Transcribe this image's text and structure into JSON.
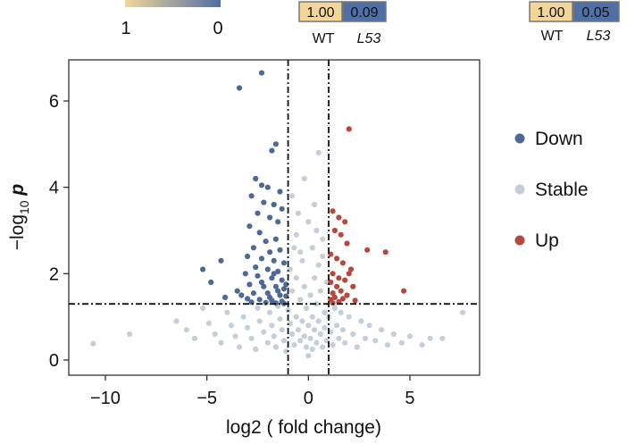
{
  "colors": {
    "down": "#4d6a96",
    "stable": "#c6ced9",
    "up": "#b5493f",
    "scale_high": "#f3d697",
    "scale_low": "#4f6fa7"
  },
  "scale_bar": {
    "left_label": "1",
    "right_label": "0"
  },
  "expression_boxes": [
    {
      "values": [
        "1.00",
        "0.09"
      ],
      "labels": [
        "WT",
        "L53"
      ]
    },
    {
      "values": [
        "1.00",
        "0.05"
      ],
      "labels": [
        "WT",
        "L53"
      ]
    }
  ],
  "chart_data": {
    "type": "scatter",
    "xlabel": "log2 ( fold change)",
    "ylabel": "-log10 p",
    "xlim": [
      -11.5,
      8
    ],
    "ylim": [
      -0.1,
      7
    ],
    "x_ticks": [
      "-10",
      "-5",
      "0",
      "5"
    ],
    "y_ticks": [
      "0",
      "2",
      "4",
      "6"
    ],
    "thresholds": {
      "fold_change": [
        -1,
        1
      ],
      "p": 1.3
    },
    "legend": {
      "placement": "right",
      "entries": [
        "Down",
        "Stable",
        "Up"
      ]
    },
    "series": [
      {
        "name": "Down",
        "points": [
          [
            -2.3,
            6.65
          ],
          [
            -3.4,
            6.3
          ],
          [
            -1.6,
            5.0
          ],
          [
            -1.8,
            4.85
          ],
          [
            -2.6,
            4.2
          ],
          [
            -2.3,
            4.05
          ],
          [
            -2.0,
            4.0
          ],
          [
            -1.4,
            3.9
          ],
          [
            -2.8,
            3.8
          ],
          [
            -2.2,
            3.65
          ],
          [
            -1.7,
            3.6
          ],
          [
            -1.3,
            3.5
          ],
          [
            -2.5,
            3.4
          ],
          [
            -1.9,
            3.3
          ],
          [
            -1.5,
            3.2
          ],
          [
            -2.9,
            3.1
          ],
          [
            -2.4,
            2.95
          ],
          [
            -1.6,
            2.8
          ],
          [
            -2.1,
            2.75
          ],
          [
            -2.7,
            2.6
          ],
          [
            -1.4,
            2.55
          ],
          [
            -1.9,
            2.5
          ],
          [
            -3.0,
            2.4
          ],
          [
            -2.3,
            2.35
          ],
          [
            -1.7,
            2.3
          ],
          [
            -1.2,
            2.25
          ],
          [
            -2.6,
            2.15
          ],
          [
            -2.0,
            2.1
          ],
          [
            -1.5,
            2.05
          ],
          [
            -4.3,
            2.3
          ],
          [
            -5.2,
            2.1
          ],
          [
            -3.1,
            2.0
          ],
          [
            -2.5,
            1.95
          ],
          [
            -1.8,
            1.9
          ],
          [
            -1.3,
            1.85
          ],
          [
            -4.8,
            1.8
          ],
          [
            -2.9,
            1.75
          ],
          [
            -2.2,
            1.7
          ],
          [
            -1.6,
            1.7
          ],
          [
            -1.2,
            1.65
          ],
          [
            -3.5,
            1.6
          ],
          [
            -2.7,
            1.55
          ],
          [
            -2.0,
            1.55
          ],
          [
            -1.4,
            1.5
          ],
          [
            -1.1,
            1.48
          ],
          [
            -4.1,
            1.45
          ],
          [
            -3.0,
            1.42
          ],
          [
            -2.4,
            1.4
          ],
          [
            -1.8,
            1.38
          ],
          [
            -1.3,
            1.36
          ],
          [
            -2.8,
            1.34
          ],
          [
            -2.1,
            1.33
          ],
          [
            -1.6,
            1.32
          ],
          [
            -1.2,
            1.31
          ],
          [
            -3.3,
            1.5
          ],
          [
            -1.9,
            1.45
          ],
          [
            -1.5,
            1.6
          ],
          [
            -2.3,
            1.8
          ],
          [
            -1.1,
            1.75
          ],
          [
            -1.7,
            2.0
          ]
        ]
      },
      {
        "name": "Stable",
        "points": [
          [
            -10.6,
            0.38
          ],
          [
            -8.8,
            0.6
          ],
          [
            -6.5,
            0.9
          ],
          [
            -6.0,
            0.7
          ],
          [
            -5.6,
            0.5
          ],
          [
            -5.2,
            1.2
          ],
          [
            -4.9,
            0.85
          ],
          [
            -4.6,
            0.6
          ],
          [
            -4.3,
            0.4
          ],
          [
            -4.0,
            1.1
          ],
          [
            -3.8,
            0.8
          ],
          [
            -3.6,
            0.55
          ],
          [
            -3.4,
            0.3
          ],
          [
            -3.2,
            1.0
          ],
          [
            -3.0,
            0.75
          ],
          [
            -2.8,
            0.5
          ],
          [
            -2.6,
            0.25
          ],
          [
            -2.5,
            1.2
          ],
          [
            -2.4,
            0.9
          ],
          [
            -2.2,
            0.65
          ],
          [
            -2.0,
            0.4
          ],
          [
            -1.9,
            1.1
          ],
          [
            -1.8,
            0.8
          ],
          [
            -1.7,
            0.55
          ],
          [
            -1.6,
            0.3
          ],
          [
            -1.5,
            1.25
          ],
          [
            -1.4,
            0.95
          ],
          [
            -1.3,
            0.7
          ],
          [
            -1.2,
            0.45
          ],
          [
            -1.1,
            0.2
          ],
          [
            -1.0,
            1.15
          ],
          [
            -0.9,
            0.85
          ],
          [
            -0.9,
            2.1
          ],
          [
            -0.8,
            0.6
          ],
          [
            -0.8,
            1.6
          ],
          [
            -0.7,
            0.35
          ],
          [
            -0.7,
            2.6
          ],
          [
            -0.6,
            1.0
          ],
          [
            -0.6,
            1.9
          ],
          [
            -0.5,
            0.7
          ],
          [
            -0.5,
            3.4
          ],
          [
            -0.4,
            0.45
          ],
          [
            -0.4,
            1.4
          ],
          [
            -0.3,
            0.9
          ],
          [
            -0.3,
            2.3
          ],
          [
            -0.2,
            0.55
          ],
          [
            -0.2,
            1.7
          ],
          [
            -0.1,
            0.3
          ],
          [
            -0.1,
            1.2
          ],
          [
            0.0,
            0.8
          ],
          [
            0.0,
            0.1
          ],
          [
            0.1,
            0.5
          ],
          [
            0.1,
            1.5
          ],
          [
            0.2,
            0.25
          ],
          [
            0.2,
            1.0
          ],
          [
            0.3,
            0.7
          ],
          [
            0.3,
            1.9
          ],
          [
            0.4,
            0.4
          ],
          [
            0.4,
            1.3
          ],
          [
            0.5,
            0.9
          ],
          [
            0.5,
            2.2
          ],
          [
            0.6,
            0.6
          ],
          [
            0.6,
            1.6
          ],
          [
            0.7,
            0.3
          ],
          [
            0.7,
            2.8
          ],
          [
            0.8,
            1.1
          ],
          [
            0.8,
            0.75
          ],
          [
            0.9,
            0.45
          ],
          [
            0.9,
            1.8
          ],
          [
            1.0,
            1.0
          ],
          [
            1.1,
            0.65
          ],
          [
            1.2,
            0.35
          ],
          [
            1.3,
            1.2
          ],
          [
            1.4,
            0.8
          ],
          [
            1.5,
            0.5
          ],
          [
            1.6,
            1.1
          ],
          [
            1.7,
            0.7
          ],
          [
            1.8,
            0.4
          ],
          [
            2.0,
            1.0
          ],
          [
            2.2,
            0.6
          ],
          [
            2.4,
            0.3
          ],
          [
            2.6,
            0.9
          ],
          [
            2.8,
            0.5
          ],
          [
            3.0,
            0.8
          ],
          [
            3.3,
            0.45
          ],
          [
            3.6,
            0.7
          ],
          [
            3.9,
            0.35
          ],
          [
            4.2,
            0.6
          ],
          [
            4.6,
            0.4
          ],
          [
            5.0,
            0.55
          ],
          [
            5.6,
            0.35
          ],
          [
            6.0,
            0.5
          ],
          [
            6.6,
            0.5
          ],
          [
            7.6,
            1.1
          ],
          [
            0.5,
            4.8
          ],
          [
            -0.2,
            4.2
          ],
          [
            0.3,
            3.6
          ],
          [
            -0.6,
            2.9
          ],
          [
            0.2,
            2.6
          ],
          [
            -0.4,
            2.5
          ],
          [
            0.4,
            3.0
          ],
          [
            -0.8,
            3.8
          ],
          [
            0.0,
            3.2
          ],
          [
            0.7,
            2.4
          ]
        ]
      },
      {
        "name": "Up",
        "points": [
          [
            2.0,
            5.35
          ],
          [
            1.2,
            3.45
          ],
          [
            1.5,
            3.3
          ],
          [
            1.8,
            3.2
          ],
          [
            1.3,
            3.0
          ],
          [
            1.6,
            2.9
          ],
          [
            1.9,
            2.7
          ],
          [
            2.9,
            2.55
          ],
          [
            3.8,
            2.5
          ],
          [
            1.1,
            2.45
          ],
          [
            1.4,
            2.35
          ],
          [
            1.7,
            2.25
          ],
          [
            2.1,
            2.1
          ],
          [
            1.2,
            2.0
          ],
          [
            1.5,
            1.9
          ],
          [
            1.8,
            1.85
          ],
          [
            1.1,
            1.8
          ],
          [
            1.4,
            1.7
          ],
          [
            2.2,
            1.7
          ],
          [
            1.6,
            1.6
          ],
          [
            1.2,
            1.55
          ],
          [
            1.9,
            1.5
          ],
          [
            1.3,
            1.45
          ],
          [
            1.7,
            1.42
          ],
          [
            1.1,
            1.4
          ],
          [
            2.3,
            1.38
          ],
          [
            1.5,
            1.35
          ],
          [
            1.2,
            1.32
          ],
          [
            4.7,
            1.6
          ],
          [
            2.0,
            2.0
          ]
        ]
      }
    ]
  }
}
